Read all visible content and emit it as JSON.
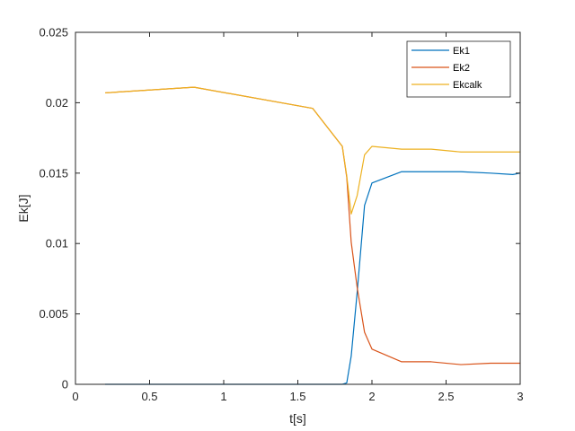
{
  "chart_data": {
    "type": "line",
    "xlabel": "t[s]",
    "ylabel": "Ek[J]",
    "xlim": [
      0,
      3
    ],
    "ylim": [
      0,
      0.025
    ],
    "x_ticks": [
      0,
      0.5,
      1,
      1.5,
      2,
      2.5,
      3
    ],
    "x_tick_labels": [
      "0",
      "0.5",
      "1",
      "1.5",
      "2",
      "2.5",
      "3"
    ],
    "y_ticks": [
      0,
      0.005,
      0.01,
      0.015,
      0.02,
      0.025
    ],
    "y_tick_labels": [
      "0",
      "0.005",
      "0.01",
      "0.015",
      "0.02",
      "0.025"
    ],
    "grid": false,
    "legend_position": "top-right",
    "series": [
      {
        "name": "Ek1",
        "color": "#0072BD",
        "points": [
          [
            0.2,
            0
          ],
          [
            0.8,
            0
          ],
          [
            1.6,
            0
          ],
          [
            1.8,
            0
          ],
          [
            1.83,
            0.0001
          ],
          [
            1.86,
            0.002
          ],
          [
            1.9,
            0.0065
          ],
          [
            1.95,
            0.0127
          ],
          [
            2.0,
            0.0143
          ],
          [
            2.2,
            0.0151
          ],
          [
            2.4,
            0.0151
          ],
          [
            2.6,
            0.0151
          ],
          [
            2.8,
            0.015
          ],
          [
            2.95,
            0.0149
          ],
          [
            3.0,
            0.015
          ]
        ]
      },
      {
        "name": "Ek2",
        "color": "#D95319",
        "points": [
          [
            0.2,
            0.0207
          ],
          [
            0.8,
            0.0211
          ],
          [
            1.6,
            0.0196
          ],
          [
            1.8,
            0.0169
          ],
          [
            1.83,
            0.0147
          ],
          [
            1.86,
            0.0101
          ],
          [
            1.9,
            0.0069
          ],
          [
            1.95,
            0.0037
          ],
          [
            2.0,
            0.0025
          ],
          [
            2.2,
            0.0016
          ],
          [
            2.4,
            0.0016
          ],
          [
            2.6,
            0.0014
          ],
          [
            2.8,
            0.0015
          ],
          [
            3.0,
            0.0015
          ]
        ]
      },
      {
        "name": "Ekcalk",
        "color": "#EDB120",
        "points": [
          [
            0.2,
            0.0207
          ],
          [
            0.8,
            0.0211
          ],
          [
            1.6,
            0.0196
          ],
          [
            1.8,
            0.0169
          ],
          [
            1.83,
            0.0148
          ],
          [
            1.86,
            0.0121
          ],
          [
            1.9,
            0.0134
          ],
          [
            1.95,
            0.0163
          ],
          [
            2.0,
            0.0169
          ],
          [
            2.2,
            0.0167
          ],
          [
            2.4,
            0.0167
          ],
          [
            2.6,
            0.0165
          ],
          [
            2.8,
            0.0165
          ],
          [
            3.0,
            0.0165
          ]
        ]
      }
    ]
  }
}
